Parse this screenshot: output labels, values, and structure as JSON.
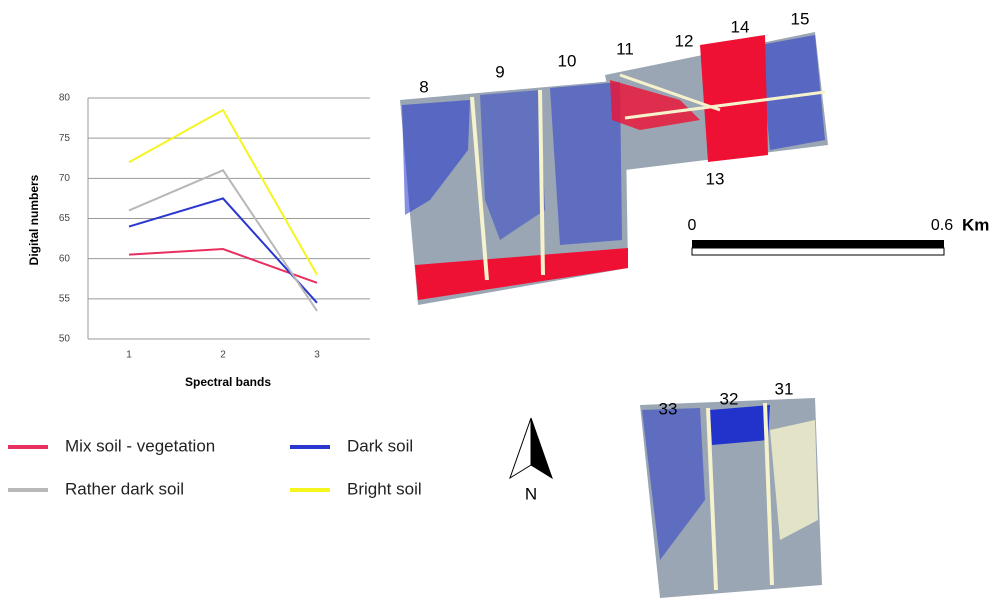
{
  "chart_data": {
    "type": "line",
    "x_label": "Spectral bands",
    "y_label": "Digital numbers",
    "categories": [
      "1",
      "2",
      "3"
    ],
    "series": [
      {
        "name": "Mix soil - vegetation",
        "color": "#e83060",
        "values": [
          60.5,
          61.2,
          57
        ]
      },
      {
        "name": "Dark soil",
        "color": "#2a36d0",
        "values": [
          64,
          67.5,
          54.5
        ]
      },
      {
        "name": "Rather dark soil",
        "color": "#b8b8b8",
        "values": [
          66,
          71,
          53.5
        ]
      },
      {
        "name": "Bright soil",
        "color": "#f5f520",
        "values": [
          72,
          78.5,
          58
        ]
      }
    ],
    "ylim": [
      50,
      80
    ],
    "yticks": [
      50,
      55,
      60,
      65,
      70,
      75,
      80
    ],
    "grid": true
  },
  "map": {
    "field_labels": [
      "8",
      "9",
      "10",
      "11",
      "12",
      "14",
      "15",
      "13",
      "33",
      "32",
      "31"
    ],
    "scale": {
      "start": "0",
      "end": "0.6",
      "unit": "Km"
    },
    "north": "N"
  }
}
